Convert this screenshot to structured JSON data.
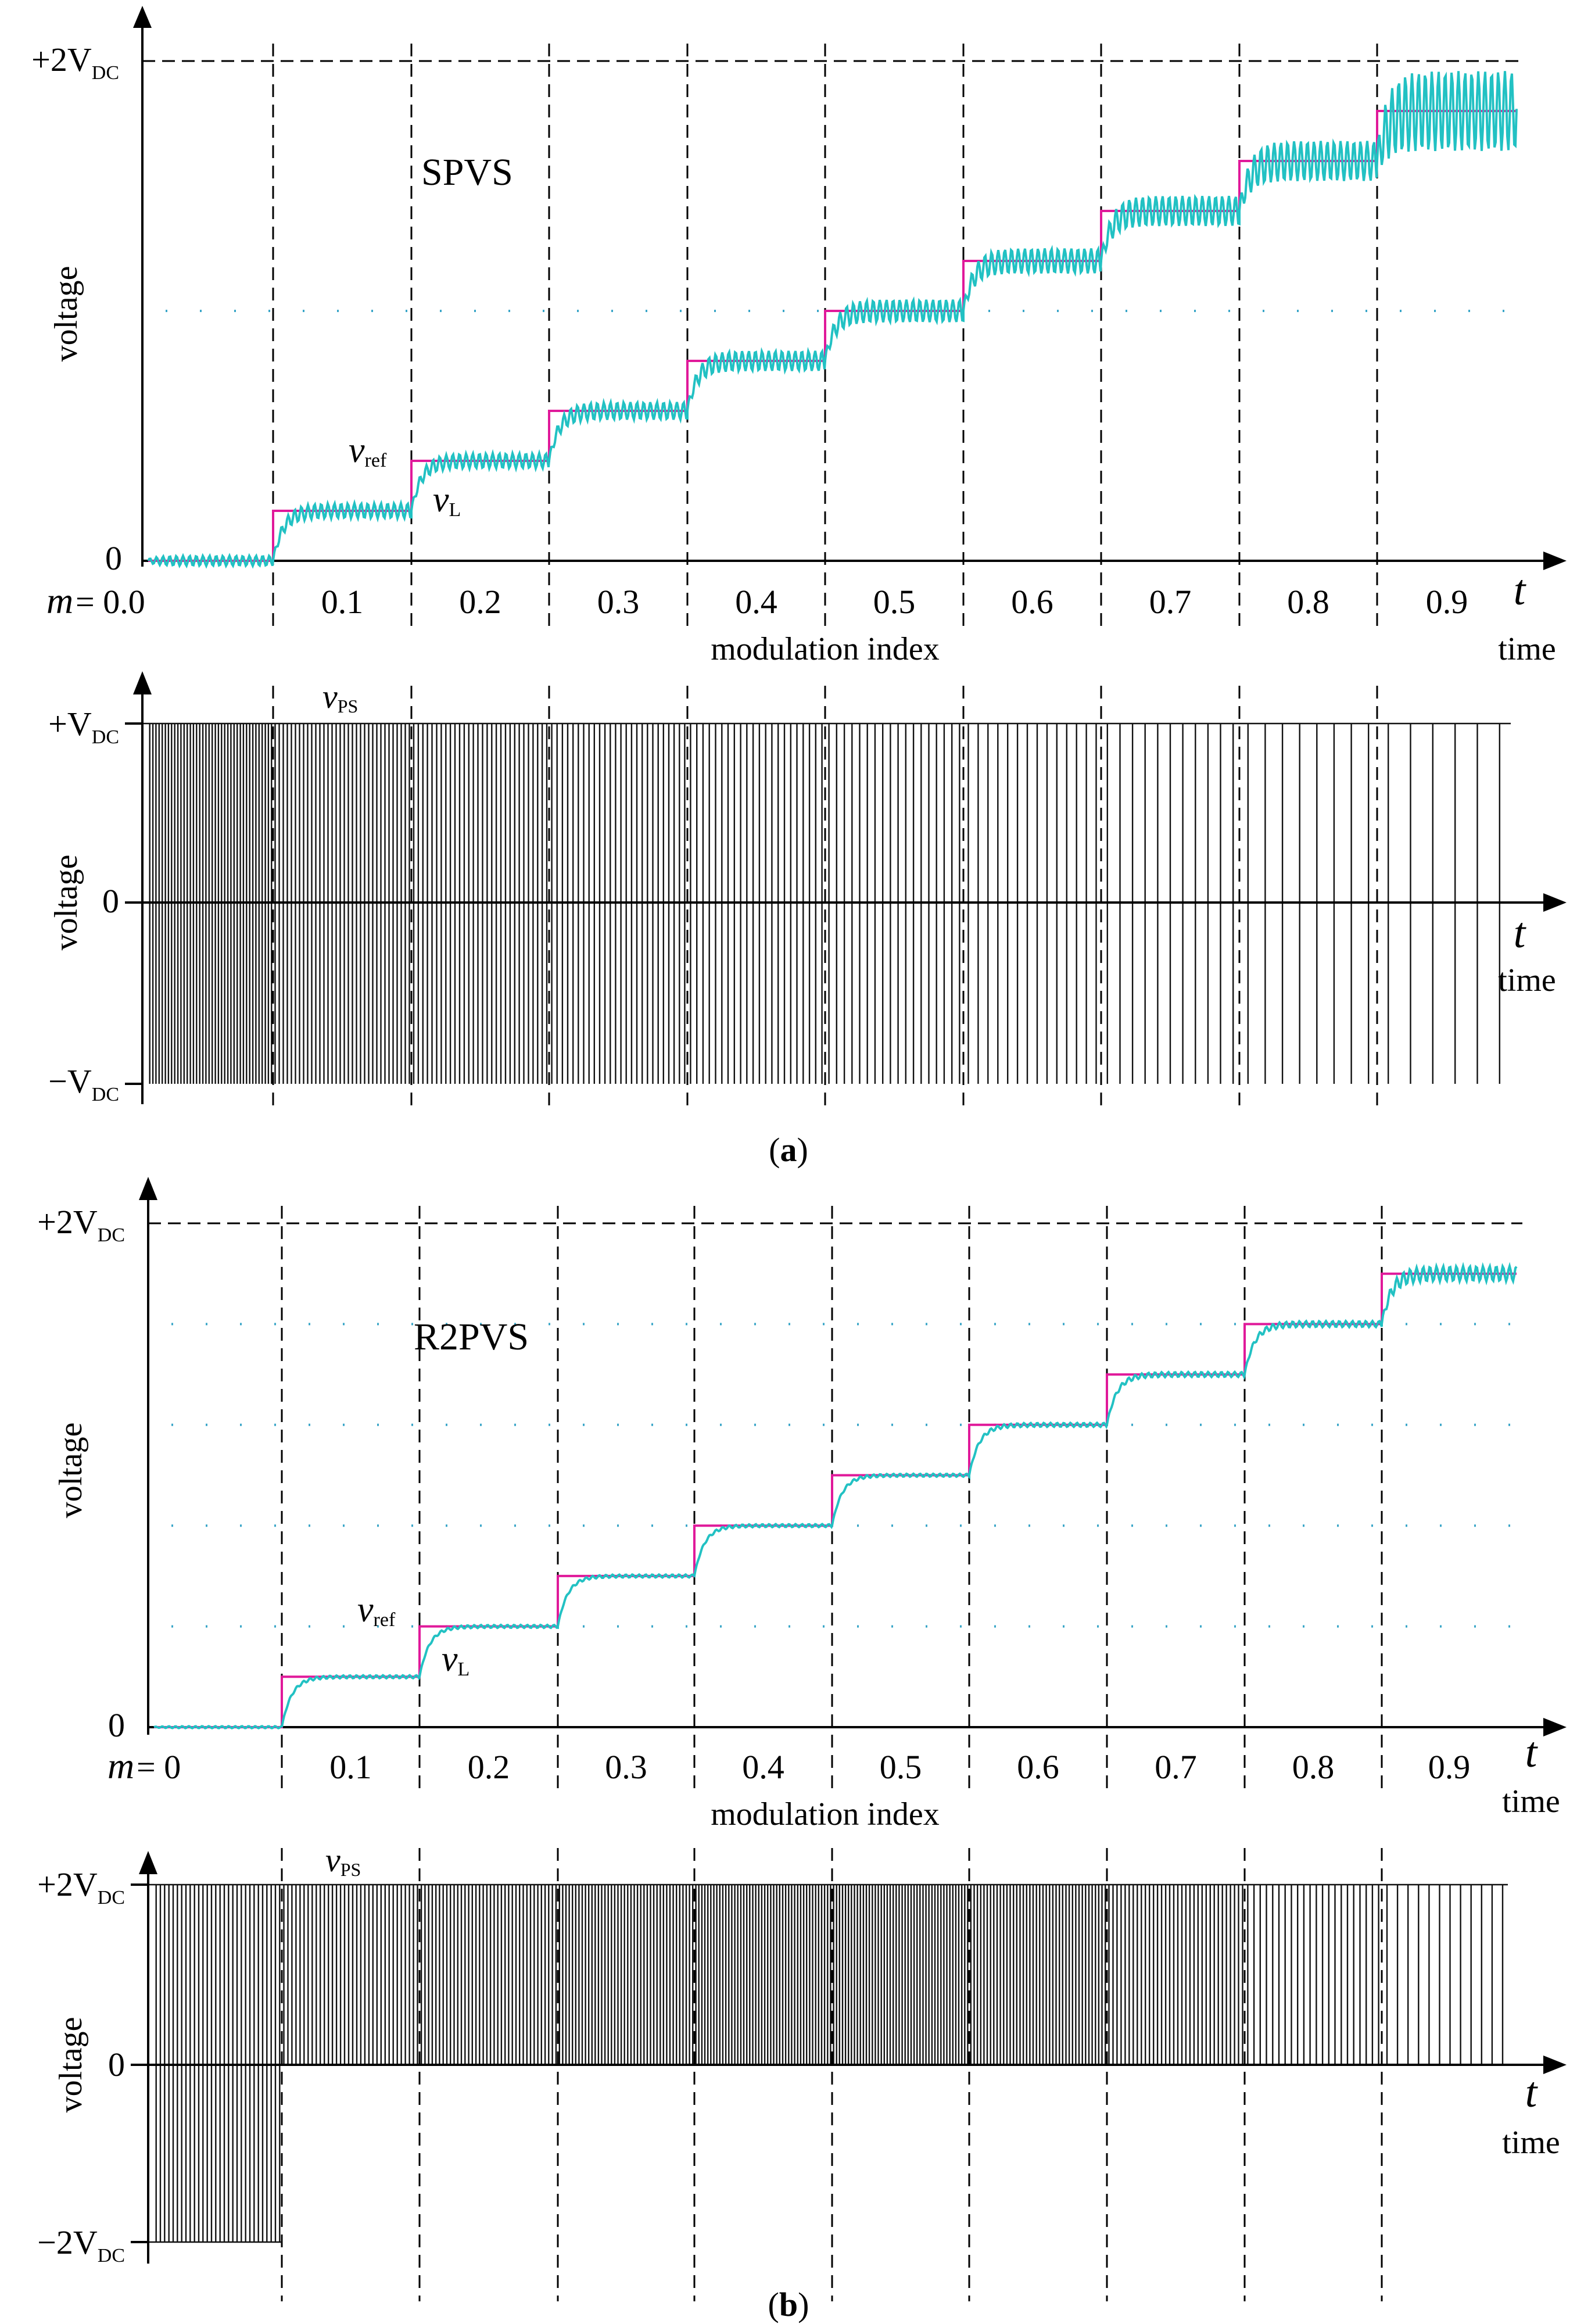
{
  "colors": {
    "axis": "#000000",
    "vref": "#e0199a",
    "vL": "#22c1c3",
    "pulse": "#111111",
    "dashed": "#000000",
    "dotted": "#3aa6c8"
  },
  "figure": {
    "caption_a": "a",
    "caption_b": "b"
  },
  "chart_data": [
    {
      "id": "a-top",
      "type": "line",
      "title": "SPVS",
      "ylabel": "voltage",
      "xlabel": "modulation index",
      "x_axis_symbol": "t",
      "x_axis_unit": "time",
      "m_label": "m",
      "m_values": [
        "= 0.0",
        "0.1",
        "0.2",
        "0.3",
        "0.4",
        "0.5",
        "0.6",
        "0.7",
        "0.8",
        "0.9"
      ],
      "y_ticks": [
        {
          "value": 2,
          "label": "+2V",
          "sub": "DC"
        },
        {
          "value": 0,
          "label": "0",
          "sub": ""
        }
      ],
      "ylim": [
        0,
        2
      ],
      "ref_levels": [
        0,
        0.2,
        0.4,
        0.6,
        0.8,
        1.0,
        1.2,
        1.4,
        1.6,
        1.8
      ],
      "ripple_amplitude": [
        0.02,
        0.03,
        0.03,
        0.035,
        0.04,
        0.045,
        0.05,
        0.06,
        0.08,
        0.16
      ],
      "series": [
        {
          "name": "v_ref",
          "label": "v",
          "sub": "ref",
          "color": "#e0199a"
        },
        {
          "name": "v_L",
          "label": "v",
          "sub": "L",
          "color": "#22c1c3"
        }
      ]
    },
    {
      "id": "a-bottom",
      "type": "line",
      "title": "v_PS",
      "ylabel": "voltage",
      "x_axis_symbol": "t",
      "x_axis_unit": "time",
      "series_label": {
        "label": "v",
        "sub": "PS"
      },
      "y_ticks": [
        {
          "value": 1,
          "label": "+V",
          "sub": "DC"
        },
        {
          "value": 0,
          "label": "0",
          "sub": ""
        },
        {
          "value": -1,
          "label": "−V",
          "sub": "DC"
        }
      ],
      "ylim": [
        -1,
        1
      ],
      "pulses_per_segment": [
        40,
        34,
        30,
        26,
        22,
        18,
        14,
        11,
        8,
        6
      ]
    },
    {
      "id": "b-top",
      "type": "line",
      "title": "R2PVS",
      "ylabel": "voltage",
      "xlabel": "modulation index",
      "x_axis_symbol": "t",
      "x_axis_unit": "time",
      "m_label": "m",
      "m_values": [
        "= 0",
        "0.1",
        "0.2",
        "0.3",
        "0.4",
        "0.5",
        "0.6",
        "0.7",
        "0.8",
        "0.9"
      ],
      "y_ticks": [
        {
          "value": 2,
          "label": "+2V",
          "sub": "DC"
        },
        {
          "value": 0,
          "label": "0",
          "sub": ""
        }
      ],
      "ylim": [
        0,
        2
      ],
      "ref_levels": [
        0,
        0.2,
        0.4,
        0.6,
        0.8,
        1.0,
        1.2,
        1.4,
        1.6,
        1.8
      ],
      "ripple_amplitude": [
        0.004,
        0.006,
        0.006,
        0.006,
        0.006,
        0.006,
        0.008,
        0.01,
        0.012,
        0.03
      ],
      "series": [
        {
          "name": "v_ref",
          "label": "v",
          "sub": "ref",
          "color": "#e0199a"
        },
        {
          "name": "v_L",
          "label": "v",
          "sub": "L",
          "color": "#22c1c3"
        }
      ]
    },
    {
      "id": "b-bottom",
      "type": "line",
      "title": "v_PS",
      "ylabel": "voltage",
      "x_axis_symbol": "t",
      "x_axis_unit": "time",
      "series_label": {
        "label": "v",
        "sub": "PS"
      },
      "y_ticks": [
        {
          "value": 2,
          "label": "+2V",
          "sub": "DC"
        },
        {
          "value": 0,
          "label": "0",
          "sub": ""
        },
        {
          "value": -2,
          "label": "−2V",
          "sub": "DC"
        }
      ],
      "ylim": [
        -2,
        2
      ],
      "pulses_per_segment": [
        30,
        34,
        38,
        42,
        46,
        46,
        42,
        34,
        22,
        12
      ]
    }
  ]
}
